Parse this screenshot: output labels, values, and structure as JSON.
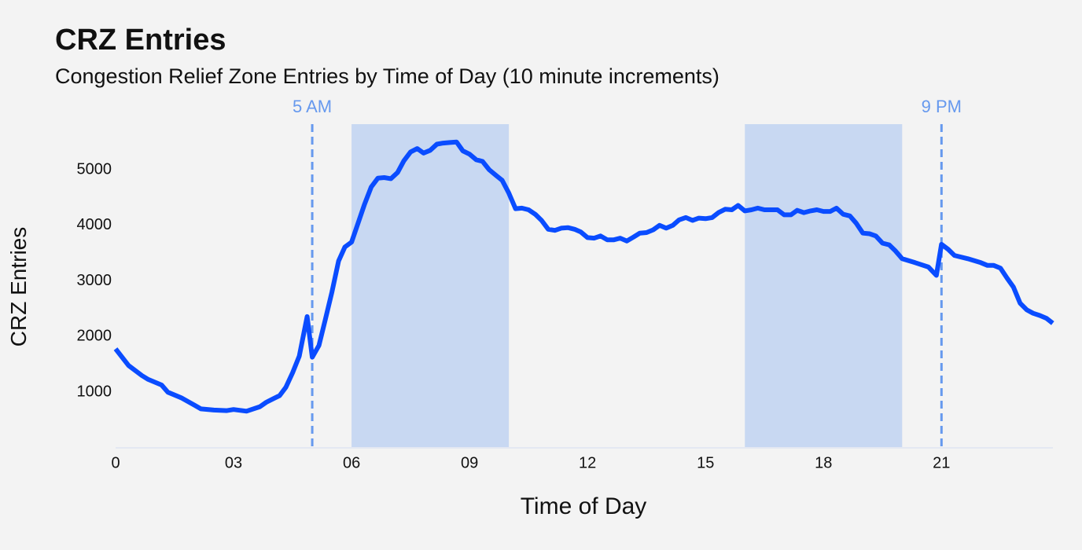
{
  "chart_data": {
    "type": "line",
    "title": "CRZ Entries",
    "subtitle": "Congestion Relief Zone Entries by Time of Day (10 minute increments)",
    "x_label": "Time of Day",
    "y_label": "CRZ Entries",
    "x": [
      0,
      0.33,
      0.67,
      0.83,
      1.17,
      1.33,
      1.67,
      2,
      2.17,
      2.5,
      2.83,
      3,
      3.33,
      3.67,
      3.83,
      4,
      4.17,
      4.33,
      4.5,
      4.67,
      4.87,
      5,
      5.17,
      5.33,
      5.5,
      5.67,
      5.83,
      6,
      6.17,
      6.33,
      6.5,
      6.67,
      6.83,
      7,
      7.17,
      7.33,
      7.5,
      7.67,
      7.83,
      8,
      8.17,
      8.33,
      8.5,
      8.67,
      8.83,
      9,
      9.17,
      9.33,
      9.5,
      9.67,
      9.83,
      10,
      10.17,
      10.33,
      10.5,
      10.67,
      10.83,
      11,
      11.17,
      11.33,
      11.5,
      11.67,
      11.83,
      12,
      12.17,
      12.33,
      12.5,
      12.67,
      12.83,
      13,
      13.17,
      13.33,
      13.5,
      13.67,
      13.83,
      14,
      14.17,
      14.33,
      14.5,
      14.67,
      14.83,
      15,
      15.17,
      15.33,
      15.5,
      15.67,
      15.83,
      16,
      16.17,
      16.33,
      16.5,
      16.67,
      16.83,
      17,
      17.17,
      17.33,
      17.5,
      17.67,
      17.83,
      18,
      18.17,
      18.33,
      18.5,
      18.67,
      18.83,
      19,
      19.17,
      19.33,
      19.5,
      19.67,
      19.83,
      20,
      20.33,
      20.67,
      20.87,
      21,
      21.17,
      21.33,
      21.67,
      22,
      22.17,
      22.33,
      22.5,
      22.67,
      22.83,
      23,
      23.17,
      23.33,
      23.5,
      23.67,
      23.83
    ],
    "series": [
      {
        "name": "CRZ Entries",
        "color": "#0a4cff",
        "values": [
          1780,
          1480,
          1300,
          1230,
          1130,
          1000,
          900,
          770,
          700,
          680,
          670,
          690,
          660,
          740,
          820,
          880,
          940,
          1090,
          1350,
          1650,
          2360,
          1630,
          1840,
          2300,
          2800,
          3360,
          3610,
          3700,
          4050,
          4380,
          4690,
          4850,
          4860,
          4840,
          4950,
          5160,
          5320,
          5380,
          5300,
          5350,
          5460,
          5480,
          5490,
          5500,
          5340,
          5280,
          5180,
          5150,
          5000,
          4900,
          4810,
          4580,
          4300,
          4310,
          4280,
          4200,
          4090,
          3930,
          3910,
          3950,
          3960,
          3930,
          3880,
          3780,
          3770,
          3810,
          3740,
          3740,
          3770,
          3720,
          3790,
          3860,
          3870,
          3920,
          4000,
          3950,
          4000,
          4100,
          4140,
          4090,
          4130,
          4120,
          4140,
          4230,
          4290,
          4280,
          4360,
          4260,
          4280,
          4310,
          4280,
          4280,
          4280,
          4190,
          4190,
          4270,
          4230,
          4260,
          4280,
          4250,
          4250,
          4310,
          4200,
          4170,
          4040,
          3860,
          3850,
          3810,
          3680,
          3650,
          3540,
          3400,
          3330,
          3250,
          3100,
          3660,
          3570,
          3460,
          3400,
          3330,
          3280,
          3280,
          3230,
          3050,
          2890,
          2600,
          2480,
          2420,
          2380,
          2330,
          2240
        ]
      }
    ],
    "xlim": [
      0,
      23.833
    ],
    "ylim": [
      0,
      5820
    ],
    "xticks": [
      0,
      {
        "value": 3,
        "label": "03"
      },
      {
        "value": 6,
        "label": "06"
      },
      {
        "value": 9,
        "label": "09"
      },
      12,
      15,
      18,
      21
    ],
    "yticks": [
      1000,
      2000,
      3000,
      4000,
      5000
    ],
    "shaded_ranges": [
      [
        6,
        10
      ],
      [
        16,
        20
      ]
    ],
    "shade_color": "#c8d8f2",
    "annotations": [
      {
        "x": 5,
        "label": "5 AM"
      },
      {
        "x": 21,
        "label": "9 PM"
      }
    ],
    "annotation_color": "#6699ee"
  }
}
